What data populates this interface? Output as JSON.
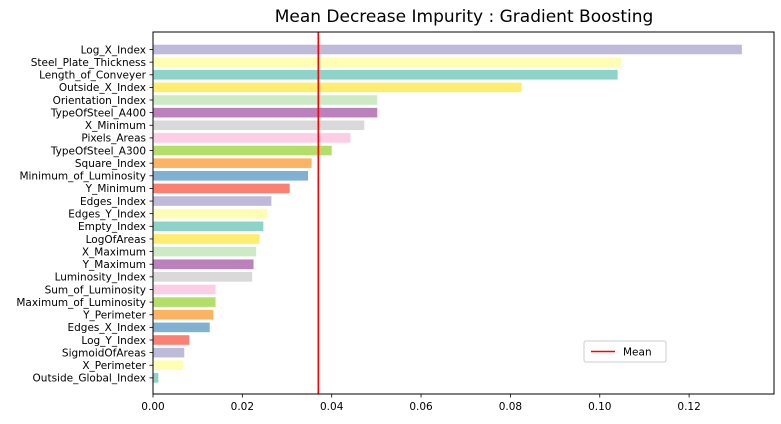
{
  "chart_data": {
    "type": "bar",
    "orientation": "horizontal",
    "title": "Mean Decrease Impurity : Gradient Boosting",
    "xlabel": "",
    "ylabel": "",
    "xlim": [
      0,
      0.139
    ],
    "xticks": [
      "0.00",
      "0.02",
      "0.04",
      "0.06",
      "0.08",
      "0.10",
      "0.12"
    ],
    "grid": false,
    "categories": [
      "Log_X_Index",
      "Steel_Plate_Thickness",
      "Length_of_Conveyer",
      "Outside_X_Index",
      "Orientation_Index",
      "TypeOfSteel_A400",
      "X_Minimum",
      "Pixels_Areas",
      "TypeOfSteel_A300",
      "Square_Index",
      "Minimum_of_Luminosity",
      "Y_Minimum",
      "Edges_Index",
      "Edges_Y_Index",
      "Empty_Index",
      "LogOfAreas",
      "X_Maximum",
      "Y_Maximum",
      "Luminosity_Index",
      "Sum_of_Luminosity",
      "Maximum_of_Luminosity",
      "Y_Perimeter",
      "Edges_X_Index",
      "Log_Y_Index",
      "SigmoidOfAreas",
      "X_Perimeter",
      "Outside_Global_Index"
    ],
    "values": [
      0.1318,
      0.1048,
      0.104,
      0.0825,
      0.0502,
      0.0502,
      0.0473,
      0.0442,
      0.04,
      0.0355,
      0.0347,
      0.0306,
      0.0265,
      0.0256,
      0.0247,
      0.0238,
      0.0231,
      0.0225,
      0.0222,
      0.014,
      0.014,
      0.0135,
      0.0127,
      0.0081,
      0.007,
      0.0067,
      0.0012
    ],
    "colors": [
      "#bebada",
      "#ffffb3",
      "#8dd3c7",
      "#ffed6f",
      "#ccebc5",
      "#bc80bd",
      "#d9d9d9",
      "#fccde5",
      "#b3de69",
      "#fdb462",
      "#80b1d3",
      "#fb8072",
      "#bebada",
      "#ffffb3",
      "#8dd3c7",
      "#ffed6f",
      "#ccebc5",
      "#bc80bd",
      "#d9d9d9",
      "#fccde5",
      "#b3de69",
      "#fdb462",
      "#80b1d3",
      "#fb8072",
      "#bebada",
      "#ffffb3",
      "#8dd3c7"
    ],
    "mean_line": {
      "value": 0.037,
      "color": "#ff0000"
    },
    "legend": {
      "placement": "lower-right",
      "entries": [
        "Mean"
      ]
    }
  }
}
